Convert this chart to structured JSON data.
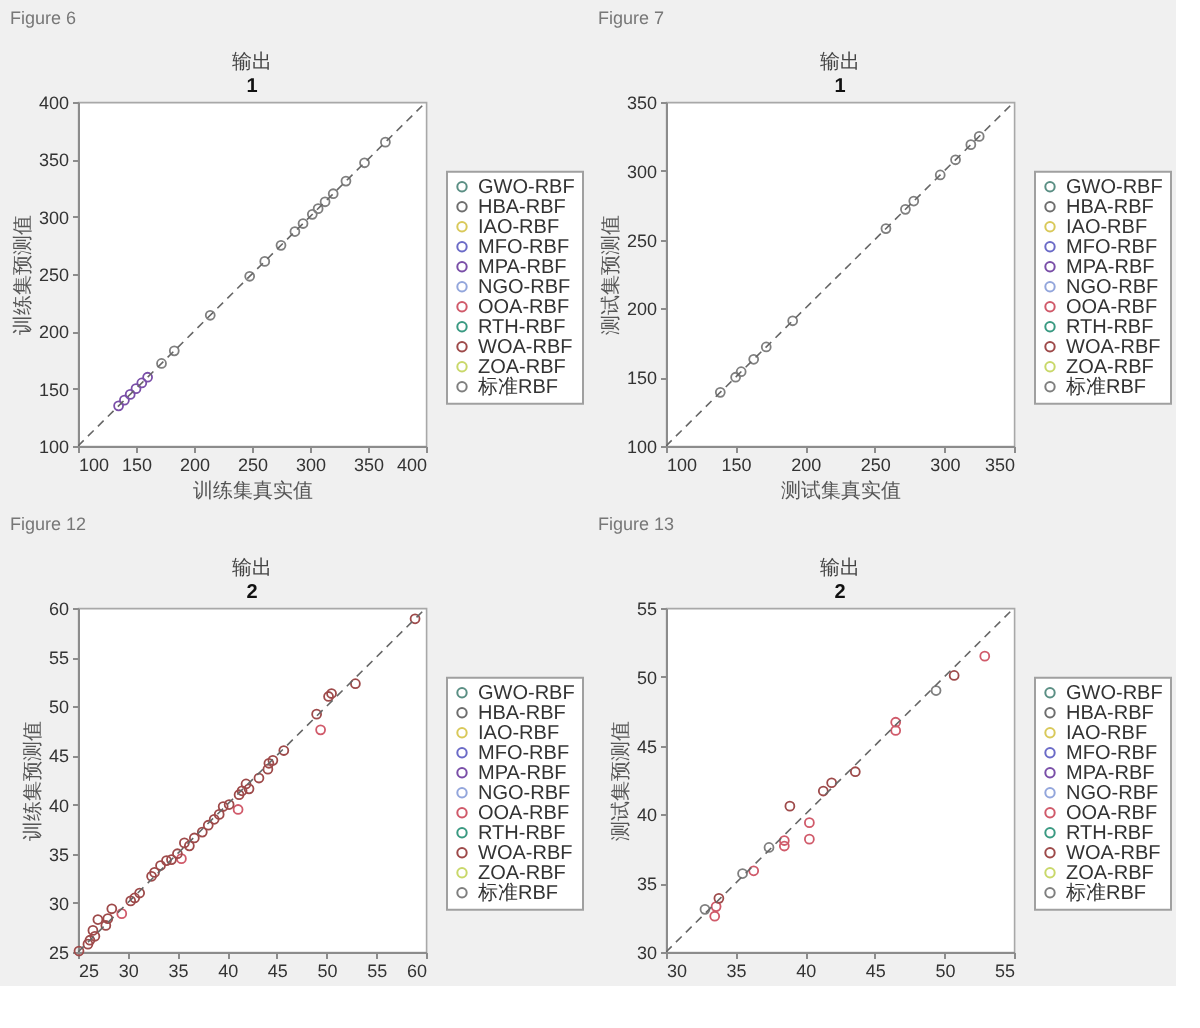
{
  "chart_data": [
    {
      "type": "scatter",
      "title": "输出",
      "subtitle": "1",
      "xlabel": "训练集真实值",
      "ylabel": "训练集预测值",
      "annotations": [
        "Figure 6"
      ],
      "marker": "circle",
      "legend": "right",
      "xlim": [
        100,
        400
      ],
      "ylim": [
        100,
        400
      ],
      "xticks": [
        100,
        150,
        200,
        250,
        300,
        350,
        400
      ],
      "yticks": [
        100,
        150,
        200,
        250,
        300,
        350,
        400
      ],
      "series": [
        {
          "name": "GWO-RBF",
          "color": "#5b8f84"
        },
        {
          "name": "HBA-RBF",
          "color": "#6e6e6e"
        },
        {
          "name": "IAO-RBF",
          "color": "#d9c95a"
        },
        {
          "name": "MFO-RBF",
          "color": "#6b6bc8"
        },
        {
          "name": "MPA-RBF",
          "color": "#7a4fa8",
          "x": [
            135,
            140,
            145,
            150,
            155,
            160
          ],
          "values": [
            135,
            140,
            145,
            150,
            155,
            160
          ]
        },
        {
          "name": "NGO-RBF",
          "color": "#93a6dc"
        },
        {
          "name": "OOA-RBF",
          "color": "#d05a6a"
        },
        {
          "name": "RTH-RBF",
          "color": "#3a9a82"
        },
        {
          "name": "WOA-RBF",
          "color": "#9e4a4a"
        },
        {
          "name": "ZOA-RBF",
          "color": "#c9d86a"
        },
        {
          "name": "标准RBF",
          "color": "#7f7f7f",
          "x": [
            172,
            183,
            214,
            248,
            261,
            275,
            287,
            294,
            302,
            307,
            313,
            320,
            331,
            347,
            365
          ],
          "values": [
            172,
            183,
            214,
            248,
            261,
            275,
            287,
            294,
            302,
            307,
            313,
            320,
            331,
            347,
            365
          ]
        },
        {
          "type": "line",
          "marker": "none",
          "color": "#666666",
          "line_style": "dashed",
          "x": [
            100,
            400
          ],
          "values": [
            100,
            400
          ]
        }
      ]
    },
    {
      "type": "scatter",
      "title": "输出",
      "subtitle": "1",
      "xlabel": "测试集真实值",
      "ylabel": "测试集预测值",
      "annotations": [
        "Figure 7"
      ],
      "marker": "circle",
      "legend": "right",
      "xlim": [
        100,
        350
      ],
      "ylim": [
        100,
        350
      ],
      "xticks": [
        100,
        150,
        200,
        250,
        300,
        350
      ],
      "yticks": [
        100,
        150,
        200,
        250,
        300,
        350
      ],
      "series": [
        {
          "name": "GWO-RBF",
          "color": "#5b8f84"
        },
        {
          "name": "HBA-RBF",
          "color": "#6e6e6e"
        },
        {
          "name": "IAO-RBF",
          "color": "#d9c95a"
        },
        {
          "name": "MFO-RBF",
          "color": "#6b6bc8"
        },
        {
          "name": "MPA-RBF",
          "color": "#7a4fa8"
        },
        {
          "name": "NGO-RBF",
          "color": "#93a6dc"
        },
        {
          "name": "OOA-RBF",
          "color": "#d05a6a"
        },
        {
          "name": "RTH-RBF",
          "color": "#3a9a82"
        },
        {
          "name": "WOA-RBF",
          "color": "#9e4a4a"
        },
        {
          "name": "ZOA-RBF",
          "color": "#c9d86a"
        },
        {
          "name": "标准RBF",
          "color": "#7f7f7f",
          "x": [
            139,
            150,
            154,
            163,
            172,
            191,
            258,
            272,
            278,
            297,
            308,
            319,
            325
          ],
          "values": [
            139,
            150,
            154,
            163,
            172,
            191,
            258,
            272,
            278,
            297,
            308,
            319,
            325
          ]
        },
        {
          "type": "line",
          "marker": "none",
          "color": "#666666",
          "line_style": "dashed",
          "x": [
            100,
            350
          ],
          "values": [
            100,
            350
          ]
        }
      ]
    },
    {
      "type": "scatter",
      "title": "输出",
      "subtitle": "2",
      "ylabel": "训练集预测值",
      "annotations": [
        "Figure 12"
      ],
      "marker": "circle",
      "legend": "right",
      "xlim": [
        25,
        60
      ],
      "ylim": [
        25,
        60
      ],
      "xticks": [
        25,
        30,
        35,
        40,
        45,
        50,
        55,
        60
      ],
      "yticks": [
        25,
        30,
        35,
        40,
        45,
        50,
        55,
        60
      ],
      "series": [
        {
          "name": "GWO-RBF",
          "color": "#5b8f84"
        },
        {
          "name": "HBA-RBF",
          "color": "#6e6e6e"
        },
        {
          "name": "IAO-RBF",
          "color": "#d9c95a"
        },
        {
          "name": "MFO-RBF",
          "color": "#6b6bc8"
        },
        {
          "name": "MPA-RBF",
          "color": "#7a4fa8"
        },
        {
          "name": "NGO-RBF",
          "color": "#93a6dc"
        },
        {
          "name": "OOA-RBF",
          "color": "#d05a6a",
          "x": [
            29.4,
            35.4,
            41.1,
            49.4
          ],
          "values": [
            28.9,
            34.5,
            39.5,
            47.6
          ]
        },
        {
          "name": "RTH-RBF",
          "color": "#3a9a82"
        },
        {
          "name": "WOA-RBF",
          "color": "#9e4a4a",
          "x": [
            25.1,
            26.0,
            26.2,
            26.5,
            26.7,
            27.0,
            27.8,
            28.0,
            28.4,
            30.3,
            30.7,
            31.2,
            32.4,
            32.7,
            33.3,
            33.9,
            34.4,
            35.0,
            35.7,
            36.2,
            36.7,
            37.5,
            38.1,
            38.7,
            39.2,
            39.6,
            40.2,
            41.2,
            41.5,
            41.9,
            42.2,
            43.2,
            44.1,
            44.2,
            44.6,
            45.7,
            49.0,
            50.2,
            50.5,
            52.9,
            58.9
          ],
          "values": [
            25.1,
            25.8,
            26.2,
            27.2,
            26.6,
            28.3,
            27.7,
            28.4,
            29.4,
            30.2,
            30.5,
            31.0,
            32.7,
            33.1,
            33.8,
            34.3,
            34.4,
            35.0,
            36.1,
            35.8,
            36.6,
            37.2,
            37.9,
            38.5,
            39.0,
            39.8,
            40.0,
            41.0,
            41.4,
            42.1,
            41.6,
            42.7,
            43.6,
            44.2,
            44.5,
            45.5,
            49.2,
            51.0,
            51.3,
            52.3,
            58.9
          ]
        },
        {
          "name": "ZOA-RBF",
          "color": "#c9d86a"
        },
        {
          "name": "标准RBF",
          "color": "#7f7f7f"
        },
        {
          "type": "line",
          "marker": "none",
          "color": "#666666",
          "line_style": "dashed",
          "x": [
            25,
            60
          ],
          "values": [
            25,
            60
          ]
        }
      ]
    },
    {
      "type": "scatter",
      "title": "输出",
      "subtitle": "2",
      "ylabel": "测试集预测值",
      "annotations": [
        "Figure 13"
      ],
      "marker": "circle",
      "legend": "right",
      "xlim": [
        30,
        55
      ],
      "ylim": [
        30,
        55
      ],
      "xticks": [
        30,
        35,
        40,
        45,
        50,
        55
      ],
      "yticks": [
        30,
        35,
        40,
        45,
        50,
        55
      ],
      "series": [
        {
          "name": "GWO-RBF",
          "color": "#5b8f84"
        },
        {
          "name": "HBA-RBF",
          "color": "#6e6e6e"
        },
        {
          "name": "IAO-RBF",
          "color": "#d9c95a"
        },
        {
          "name": "MFO-RBF",
          "color": "#6b6bc8"
        },
        {
          "name": "MPA-RBF",
          "color": "#7a4fa8"
        },
        {
          "name": "NGO-RBF",
          "color": "#93a6dc"
        },
        {
          "name": "OOA-RBF",
          "color": "#d05a6a",
          "x": [
            33.5,
            33.6,
            36.3,
            38.5,
            38.5,
            40.3,
            40.3,
            46.5,
            46.5,
            52.9
          ],
          "values": [
            32.6,
            33.3,
            35.9,
            37.7,
            38.1,
            39.4,
            38.2,
            46.1,
            46.7,
            51.5
          ]
        },
        {
          "name": "RTH-RBF",
          "color": "#3a9a82"
        },
        {
          "name": "WOA-RBF",
          "color": "#9e4a4a",
          "x": [
            33.8,
            38.9,
            41.3,
            41.9,
            43.6,
            50.7
          ],
          "values": [
            33.9,
            40.6,
            41.7,
            42.3,
            43.1,
            50.1
          ]
        },
        {
          "name": "ZOA-RBF",
          "color": "#c9d86a"
        },
        {
          "name": "标准RBF",
          "color": "#7f7f7f",
          "x": [
            32.8,
            35.5,
            37.4,
            49.4
          ],
          "values": [
            33.1,
            35.7,
            37.6,
            49.0
          ]
        },
        {
          "type": "line",
          "marker": "none",
          "color": "#666666",
          "line_style": "dashed",
          "x": [
            30,
            55
          ],
          "values": [
            30,
            55
          ]
        }
      ]
    }
  ]
}
